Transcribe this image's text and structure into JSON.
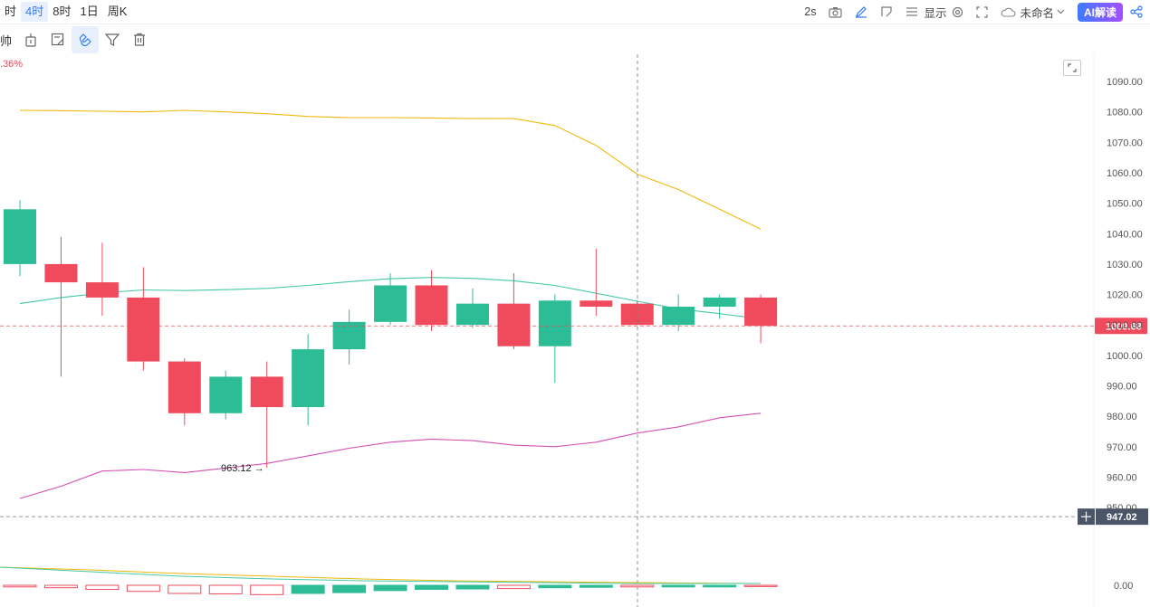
{
  "topbar": {
    "intervals": [
      {
        "label": "时",
        "active": false
      },
      {
        "label": "4时",
        "active": true
      },
      {
        "label": "8时",
        "active": false
      },
      {
        "label": "1日",
        "active": false
      },
      {
        "label": "周K",
        "active": false
      }
    ],
    "speed": "2s",
    "display_label": "显示",
    "cloud_label": "未命名",
    "ai_label": "AI解读"
  },
  "toolbar": {
    "partial_label": "帅"
  },
  "change_text": ".36%",
  "colors": {
    "up": "#2dbd96",
    "down": "#ef4b5c",
    "upper_band": "#f0b90b",
    "middle_band": "#45c9a8",
    "lower_band": "#d44fb4",
    "price_tag": "#ef4b5c",
    "cross_tag": "#4a5568"
  },
  "chart_data": {
    "type": "candlestick",
    "y_ticks": [
      1090,
      1080,
      1070,
      1060,
      1050,
      1040,
      1030,
      1020,
      1010,
      1000,
      990,
      980,
      970,
      960,
      950
    ],
    "y_tick_labels": [
      "1090.00",
      "1080.00",
      "1070.00",
      "1060.00",
      "1050.00",
      "1040.00",
      "1030.00",
      "1020.00",
      "1010.00",
      "1000.00",
      "990.00",
      "980.00",
      "970.00",
      "960.00",
      "950.00"
    ],
    "ylim": [
      944,
      1094
    ],
    "candles": [
      {
        "o": 1030,
        "h": 1051,
        "l": 1026,
        "c": 1048
      },
      {
        "o": 1030,
        "h": 1039,
        "l": 993,
        "c": 1024
      },
      {
        "o": 1024,
        "h": 1037,
        "l": 1013,
        "c": 1019
      },
      {
        "o": 1019,
        "h": 1029,
        "l": 995,
        "c": 998
      },
      {
        "o": 998,
        "h": 999,
        "l": 977,
        "c": 981
      },
      {
        "o": 981,
        "h": 995,
        "l": 979,
        "c": 993
      },
      {
        "o": 993,
        "h": 998,
        "l": 963.12,
        "c": 983
      },
      {
        "o": 983,
        "h": 1007,
        "l": 977,
        "c": 1002
      },
      {
        "o": 1002,
        "h": 1015,
        "l": 997,
        "c": 1011
      },
      {
        "o": 1011,
        "h": 1027,
        "l": 1010,
        "c": 1023
      },
      {
        "o": 1023,
        "h": 1028,
        "l": 1008,
        "c": 1010
      },
      {
        "o": 1010,
        "h": 1022,
        "l": 1009,
        "c": 1017
      },
      {
        "o": 1017,
        "h": 1027,
        "l": 1002,
        "c": 1003
      },
      {
        "o": 1003,
        "h": 1020,
        "l": 991,
        "c": 1018
      },
      {
        "o": 1018,
        "h": 1035,
        "l": 1013,
        "c": 1016
      },
      {
        "o": 1017,
        "h": 1018,
        "l": 1010,
        "c": 1010
      },
      {
        "o": 1010,
        "h": 1020,
        "l": 1008,
        "c": 1016
      },
      {
        "o": 1016,
        "h": 1020,
        "l": 1012,
        "c": 1019
      },
      {
        "o": 1019,
        "h": 1020,
        "l": 1004,
        "c": 1009.68
      }
    ],
    "upper_band": [
      1080.5,
      1080.4,
      1080.2,
      1080.0,
      1080.5,
      1080.0,
      1079.4,
      1078.5,
      1078.1,
      1078.1,
      1078.0,
      1077.8,
      1077.8,
      1075.5,
      1069.0,
      1059.5,
      1054.5,
      1048.0,
      1041.5
    ],
    "middle_band": [
      1017,
      1019,
      1020.5,
      1021.5,
      1021.3,
      1021.6,
      1022,
      1023,
      1024.2,
      1025.2,
      1025.6,
      1025.3,
      1024.5,
      1023,
      1020.4,
      1017.8,
      1015.3,
      1013.7,
      1012
    ],
    "lower_band": [
      953,
      957,
      962,
      962.5,
      961.5,
      963,
      964.5,
      967,
      969.5,
      971.5,
      972.5,
      972,
      970.5,
      970,
      971.5,
      974.5,
      976.5,
      979.5,
      981
    ],
    "low_marker": {
      "label": "963.12 →",
      "value": 963.12
    },
    "last_price": "1009.68",
    "cross_price": "947.02",
    "macd_zero_label": "0.00",
    "histogram": [
      -0.4,
      -0.6,
      -1.0,
      -1.5,
      -2.0,
      -2.1,
      -2.3,
      -2.0,
      -1.8,
      -1.3,
      -1.0,
      -0.9,
      -0.8,
      -0.6,
      -0.5,
      -0.4,
      -0.4,
      -0.4,
      -0.3
    ],
    "hist_colors": [
      "down",
      "down",
      "down",
      "down",
      "down",
      "down",
      "down",
      "up",
      "up",
      "up",
      "up",
      "up",
      "down",
      "up",
      "up",
      "down",
      "up",
      "up",
      "down"
    ]
  }
}
